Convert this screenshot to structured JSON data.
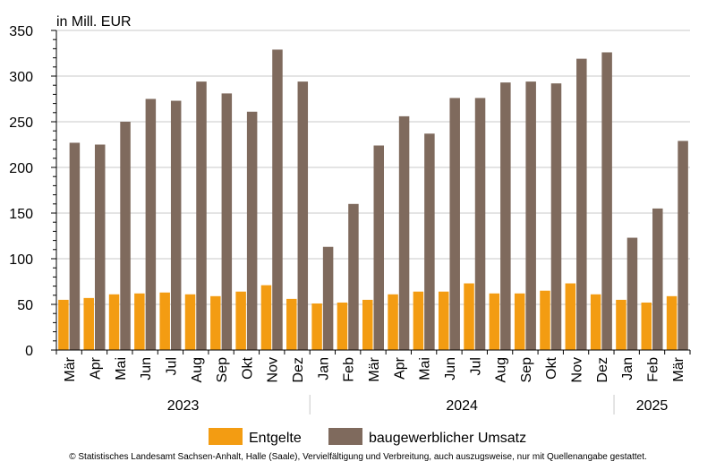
{
  "chart_data": {
    "type": "bar",
    "unit_label": "in Mill. EUR",
    "categories": [
      "Mär",
      "Apr",
      "Mai",
      "Jun",
      "Jul",
      "Aug",
      "Sep",
      "Okt",
      "Nov",
      "Dez",
      "Jan",
      "Feb",
      "Mär",
      "Apr",
      "Mai",
      "Jun",
      "Jul",
      "Aug",
      "Sep",
      "Okt",
      "Nov",
      "Dez",
      "Jan",
      "Feb",
      "Mär"
    ],
    "year_groups": [
      {
        "label": "2023",
        "count": 10
      },
      {
        "label": "2024",
        "count": 12
      },
      {
        "label": "2025",
        "count": 3
      }
    ],
    "series": [
      {
        "name": "Entgelte",
        "color": "#f39c12",
        "values": [
          55,
          57,
          61,
          62,
          63,
          61,
          59,
          64,
          71,
          56,
          51,
          52,
          55,
          61,
          64,
          64,
          73,
          62,
          62,
          65,
          73,
          61,
          55,
          52,
          59
        ]
      },
      {
        "name": "baugewerblicher Umsatz",
        "color": "#7f6a5d",
        "values": [
          227,
          225,
          250,
          275,
          273,
          294,
          281,
          261,
          329,
          294,
          113,
          160,
          224,
          256,
          237,
          276,
          276,
          293,
          294,
          292,
          319,
          326,
          123,
          155,
          229
        ]
      }
    ],
    "yticks": [
      0,
      50,
      100,
      150,
      200,
      250,
      300,
      350
    ],
    "ylim": [
      0,
      350
    ],
    "grid": true,
    "legend_position": "bottom"
  },
  "footer": {
    "copyright": "© Statistisches Landesamt Sachsen-Anhalt, Halle (Saale), Vervielfältigung und Verbreitung, auch auszugsweise, nur mit Quellenangabe gestattet."
  }
}
